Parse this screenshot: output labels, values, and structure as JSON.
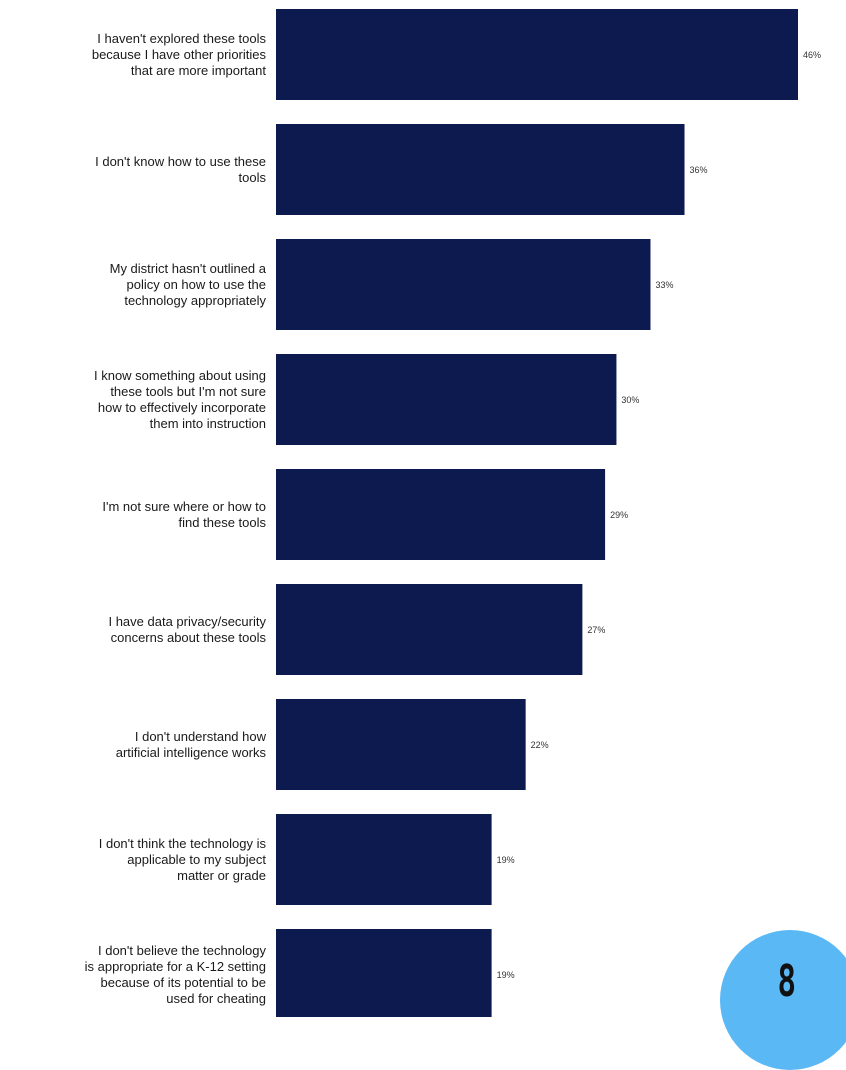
{
  "chart_data": {
    "type": "bar",
    "orientation": "horizontal",
    "categories": [
      "I haven't explored these tools\nbecause I have other priorities\nthat are more important",
      "I don't know how to use these\ntools",
      "My district hasn't outlined a\npolicy on how to use the\ntechnology appropriately",
      "I know something about using\nthese tools but I'm not sure\nhow to effectively incorporate\nthem into instruction",
      "I'm not sure where or how to\nfind these tools",
      "I have data privacy/security\nconcerns about these tools",
      "I don't understand how\nartificial intelligence works",
      "I don't think the technology is\napplicable to my subject\nmatter or grade",
      "I don't believe the technology\nis appropriate for a K-12 setting\nbecause of its potential to be\nused for cheating"
    ],
    "values": [
      46,
      36,
      33,
      30,
      29,
      27,
      22,
      19,
      19
    ],
    "value_labels": [
      "46%",
      "36%",
      "33%",
      "30%",
      "29%",
      "27%",
      "22%",
      "19%",
      "19%"
    ],
    "unit": "%",
    "bar_color": "#0d1a4f",
    "grid": false,
    "legend": "none"
  },
  "page_badge": {
    "number": "8",
    "color": "#5ab8f5"
  }
}
